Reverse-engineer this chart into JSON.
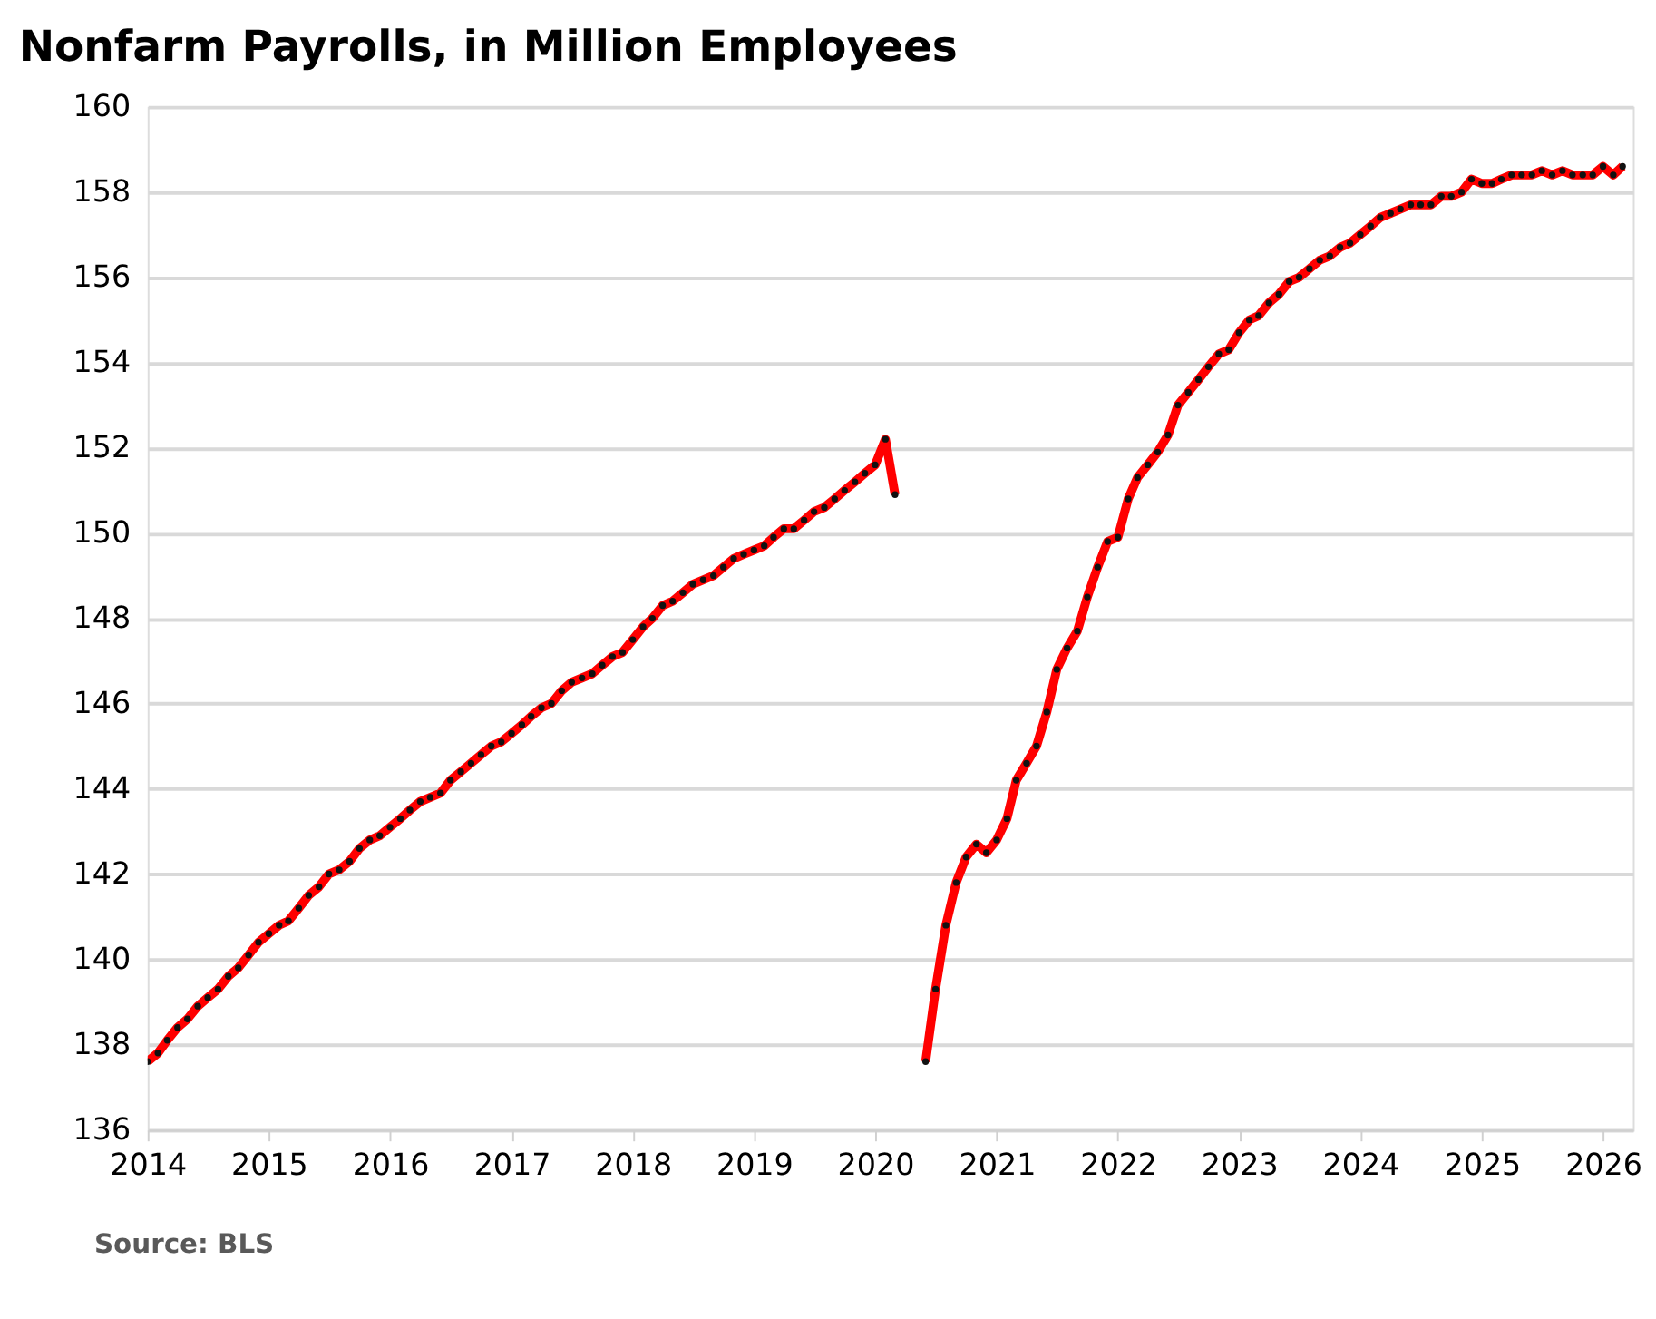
{
  "chart_data": {
    "type": "line",
    "title": "Nonfarm Payrolls, in Million Employees",
    "annotations": [
      "Source: BLS"
    ],
    "x": [
      "2014-01",
      "2014-02",
      "2014-03",
      "2014-04",
      "2014-05",
      "2014-06",
      "2014-07",
      "2014-08",
      "2014-09",
      "2014-10",
      "2014-11",
      "2014-12",
      "2015-01",
      "2015-02",
      "2015-03",
      "2015-04",
      "2015-05",
      "2015-06",
      "2015-07",
      "2015-08",
      "2015-09",
      "2015-10",
      "2015-11",
      "2015-12",
      "2016-01",
      "2016-02",
      "2016-03",
      "2016-04",
      "2016-05",
      "2016-06",
      "2016-07",
      "2016-08",
      "2016-09",
      "2016-10",
      "2016-11",
      "2016-12",
      "2017-01",
      "2017-02",
      "2017-03",
      "2017-04",
      "2017-05",
      "2017-06",
      "2017-07",
      "2017-08",
      "2017-09",
      "2017-10",
      "2017-11",
      "2017-12",
      "2018-01",
      "2018-02",
      "2018-03",
      "2018-04",
      "2018-05",
      "2018-06",
      "2018-07",
      "2018-08",
      "2018-09",
      "2018-10",
      "2018-11",
      "2018-12",
      "2019-01",
      "2019-02",
      "2019-03",
      "2019-04",
      "2019-05",
      "2019-06",
      "2019-07",
      "2019-08",
      "2019-09",
      "2019-10",
      "2019-11",
      "2019-12",
      "2020-01",
      "2020-02",
      "2020-03",
      "2020-04",
      "2020-05",
      "2020-06",
      "2020-07",
      "2020-08",
      "2020-09",
      "2020-10",
      "2020-11",
      "2020-12",
      "2021-01",
      "2021-02",
      "2021-03",
      "2021-04",
      "2021-05",
      "2021-06",
      "2021-07",
      "2021-08",
      "2021-09",
      "2021-10",
      "2021-11",
      "2021-12",
      "2022-01",
      "2022-02",
      "2022-03",
      "2022-04",
      "2022-05",
      "2022-06",
      "2022-07",
      "2022-08",
      "2022-09",
      "2022-10",
      "2022-11",
      "2022-12",
      "2023-01",
      "2023-02",
      "2023-03",
      "2023-04",
      "2023-05",
      "2023-06",
      "2023-07",
      "2023-08",
      "2023-09",
      "2023-10",
      "2023-11",
      "2023-12",
      "2024-01",
      "2024-02",
      "2024-03",
      "2024-04",
      "2024-05",
      "2024-06",
      "2024-07",
      "2024-08",
      "2024-09",
      "2024-10",
      "2024-11",
      "2024-12",
      "2025-01",
      "2025-02",
      "2025-03",
      "2025-04",
      "2025-05",
      "2025-06",
      "2025-07",
      "2025-08",
      "2025-09",
      "2025-10",
      "2025-11",
      "2025-12",
      "2026-01",
      "2026-02",
      "2026-03"
    ],
    "series": [
      {
        "color": "#ff0000",
        "values": [
          137.6,
          137.8,
          138.1,
          138.4,
          138.6,
          138.9,
          139.1,
          139.3,
          139.6,
          139.8,
          140.1,
          140.4,
          140.6,
          140.8,
          140.9,
          141.2,
          141.5,
          141.7,
          142.0,
          142.1,
          142.3,
          142.6,
          142.8,
          142.9,
          143.1,
          143.3,
          143.5,
          143.7,
          143.8,
          143.9,
          144.2,
          144.4,
          144.6,
          144.8,
          145.0,
          145.1,
          145.3,
          145.5,
          145.7,
          145.9,
          146.0,
          146.3,
          146.5,
          146.6,
          146.7,
          146.9,
          147.1,
          147.2,
          147.5,
          147.8,
          148.0,
          148.3,
          148.4,
          148.6,
          148.8,
          148.9,
          149.0,
          149.2,
          149.4,
          149.5,
          149.6,
          149.7,
          149.9,
          150.1,
          150.1,
          150.3,
          150.5,
          150.6,
          150.8,
          151.0,
          151.2,
          151.4,
          151.6,
          152.2,
          150.9,
          null,
          null,
          137.6,
          139.3,
          140.8,
          141.8,
          142.4,
          142.7,
          142.5,
          142.8,
          143.3,
          144.2,
          144.6,
          145.0,
          145.8,
          146.8,
          147.3,
          147.7,
          148.5,
          149.2,
          149.8,
          149.9,
          150.8,
          151.3,
          151.6,
          151.9,
          152.3,
          153.0,
          153.3,
          153.6,
          153.9,
          154.2,
          154.3,
          154.7,
          155.0,
          155.1,
          155.4,
          155.6,
          155.9,
          156.0,
          156.2,
          156.4,
          156.5,
          156.7,
          156.8,
          157.0,
          157.2,
          157.4,
          157.5,
          157.6,
          157.7,
          157.7,
          157.7,
          157.9,
          157.9,
          158.0,
          158.3,
          158.2,
          158.2,
          158.3,
          158.4,
          158.4,
          158.4,
          158.5,
          158.4,
          158.5,
          158.4,
          158.4,
          158.4,
          158.6,
          158.4,
          158.6
        ]
      }
    ],
    "xlim": [
      "2014-01",
      "2026-04"
    ],
    "xticks": [
      {
        "value": "2014",
        "label": "2014"
      },
      {
        "value": "2015",
        "label": "2015"
      },
      {
        "value": "2016",
        "label": "2016"
      },
      {
        "value": "2017",
        "label": "2017"
      },
      {
        "value": "2018",
        "label": "2018"
      },
      {
        "value": "2019",
        "label": "2019"
      },
      {
        "value": "2020",
        "label": "2020"
      },
      {
        "value": "2021",
        "label": "2021"
      },
      {
        "value": "2022",
        "label": "2022"
      },
      {
        "value": "2023",
        "label": "2023"
      },
      {
        "value": "2024",
        "label": "2024"
      },
      {
        "value": "2025",
        "label": "2025"
      },
      {
        "value": "2026",
        "label": "2026"
      }
    ],
    "ylim": [
      136,
      160
    ],
    "yticks": [
      136,
      138,
      140,
      142,
      144,
      146,
      148,
      150,
      152,
      154,
      156,
      158,
      160
    ],
    "grid": "y",
    "marker": "circle",
    "line_style": "solid"
  }
}
